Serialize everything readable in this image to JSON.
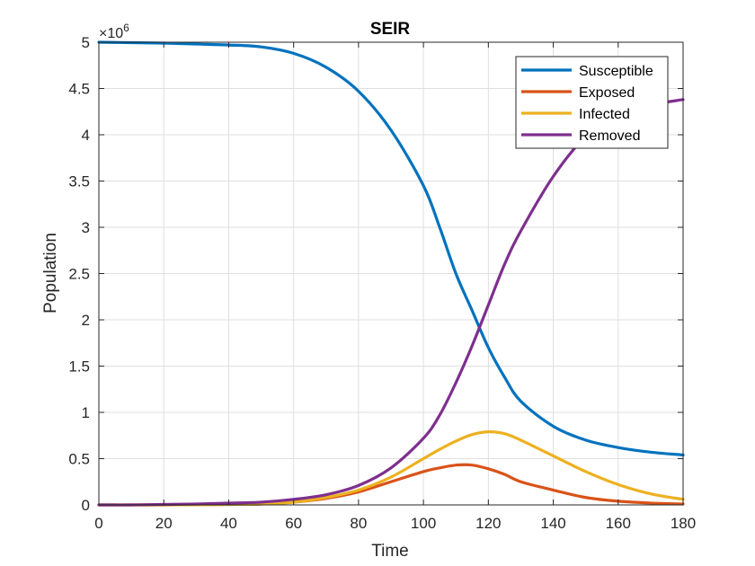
{
  "chart_data": {
    "type": "line",
    "title": "SEIR",
    "xlabel": "Time",
    "ylabel": "Population",
    "xlim": [
      0,
      180
    ],
    "ylim": [
      0,
      5
    ],
    "y_exponent_label": "×10",
    "y_exponent_power": "6",
    "xticks": [
      "0",
      "20",
      "40",
      "60",
      "80",
      "100",
      "120",
      "140",
      "160",
      "180"
    ],
    "yticks": [
      "0",
      "0.5",
      "1",
      "1.5",
      "2",
      "2.5",
      "3",
      "3.5",
      "4",
      "4.5",
      "5"
    ],
    "grid": true,
    "legend_position": "top-right",
    "x": [
      0,
      10,
      20,
      30,
      40,
      50,
      60,
      70,
      80,
      90,
      100,
      105,
      110,
      115,
      120,
      125,
      130,
      140,
      150,
      160,
      170,
      180
    ],
    "series": [
      {
        "name": "Susceptible",
        "color": "#0072BD",
        "values": [
          5.0,
          4.995,
          4.99,
          4.98,
          4.97,
          4.95,
          4.88,
          4.73,
          4.47,
          4.05,
          3.45,
          3.0,
          2.5,
          2.1,
          1.7,
          1.38,
          1.12,
          0.85,
          0.7,
          0.62,
          0.57,
          0.54
        ]
      },
      {
        "name": "Exposed",
        "color": "#D95319",
        "values": [
          0.0,
          0.0,
          0.0,
          0.002,
          0.005,
          0.01,
          0.03,
          0.07,
          0.14,
          0.25,
          0.36,
          0.4,
          0.43,
          0.43,
          0.39,
          0.33,
          0.25,
          0.16,
          0.08,
          0.04,
          0.02,
          0.01
        ]
      },
      {
        "name": "Infected",
        "color": "#EDB120",
        "values": [
          0.0,
          0.0,
          0.0,
          0.002,
          0.005,
          0.01,
          0.03,
          0.08,
          0.16,
          0.3,
          0.5,
          0.6,
          0.69,
          0.76,
          0.79,
          0.77,
          0.7,
          0.53,
          0.36,
          0.22,
          0.12,
          0.06
        ]
      },
      {
        "name": "Removed",
        "color": "#7E2F8E",
        "values": [
          0.0,
          0.0,
          0.005,
          0.01,
          0.02,
          0.03,
          0.06,
          0.11,
          0.21,
          0.4,
          0.72,
          0.97,
          1.32,
          1.72,
          2.16,
          2.6,
          2.96,
          3.55,
          3.98,
          4.2,
          4.32,
          4.38
        ]
      }
    ]
  }
}
